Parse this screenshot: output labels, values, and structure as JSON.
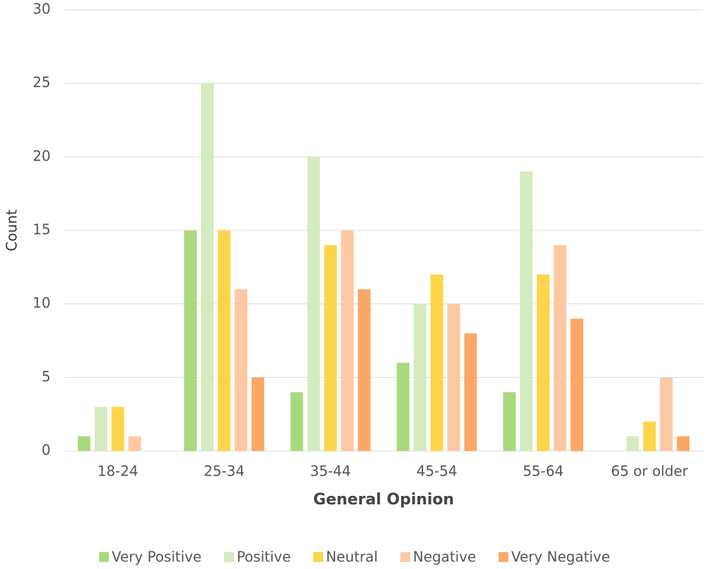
{
  "chart_data": {
    "type": "bar",
    "x_label": "General Opinion",
    "y_label": "Count",
    "categories": [
      "18-24",
      "25-34",
      "35-44",
      "45-54",
      "55-64",
      "65 or older"
    ],
    "series": [
      {
        "name": "Very Positive",
        "color": "#a9d97e",
        "values": [
          1,
          15,
          4,
          6,
          4,
          0
        ]
      },
      {
        "name": "Positive",
        "color": "#d4ebbf",
        "values": [
          3,
          25,
          20,
          10,
          19,
          1
        ]
      },
      {
        "name": "Neutral",
        "color": "#fcd54a",
        "values": [
          3,
          15,
          14,
          12,
          12,
          2
        ]
      },
      {
        "name": "Negative",
        "color": "#fdc9a3",
        "values": [
          1,
          11,
          15,
          10,
          14,
          5
        ]
      },
      {
        "name": "Very Negative",
        "color": "#fba866",
        "values": [
          0,
          5,
          11,
          8,
          9,
          1
        ]
      }
    ],
    "ylim": [
      0,
      30
    ],
    "yticks": [
      0,
      5,
      10,
      15,
      20,
      25,
      30
    ],
    "grid": true,
    "legend": "bottom"
  }
}
